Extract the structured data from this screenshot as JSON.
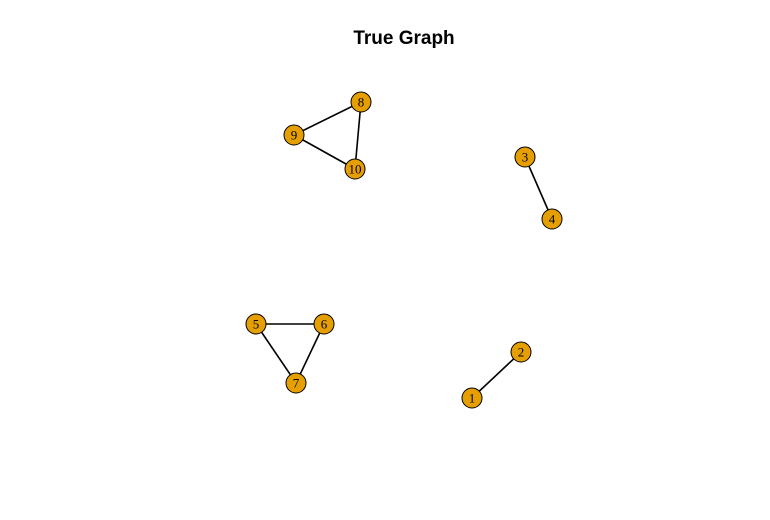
{
  "title": "True Graph",
  "colors": {
    "node_fill": "#E69F00",
    "node_stroke": "#000000",
    "edge": "#000000",
    "background": "#FFFFFF"
  },
  "nodes": [
    {
      "id": 1,
      "label": "1"
    },
    {
      "id": 2,
      "label": "2"
    },
    {
      "id": 3,
      "label": "3"
    },
    {
      "id": 4,
      "label": "4"
    },
    {
      "id": 5,
      "label": "5"
    },
    {
      "id": 6,
      "label": "6"
    },
    {
      "id": 7,
      "label": "7"
    },
    {
      "id": 8,
      "label": "8"
    },
    {
      "id": 9,
      "label": "9"
    },
    {
      "id": 10,
      "label": "10"
    }
  ],
  "edges": [
    {
      "from": 1,
      "to": 2
    },
    {
      "from": 3,
      "to": 4
    },
    {
      "from": 5,
      "to": 6
    },
    {
      "from": 5,
      "to": 7
    },
    {
      "from": 6,
      "to": 7
    },
    {
      "from": 8,
      "to": 9
    },
    {
      "from": 8,
      "to": 10
    },
    {
      "from": 9,
      "to": 10
    }
  ]
}
